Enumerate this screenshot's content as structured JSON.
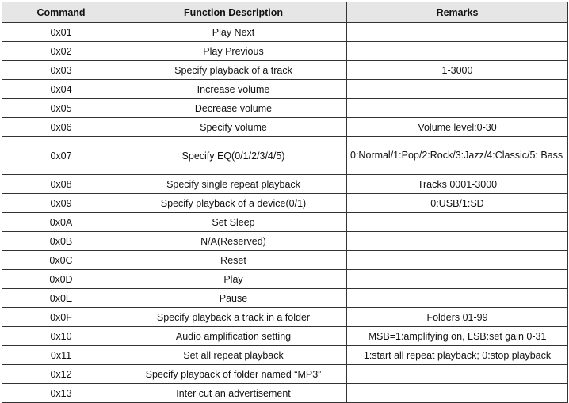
{
  "headers": [
    "Command",
    "Function Description",
    "Remarks"
  ],
  "rows": [
    {
      "command": "0x01",
      "function": "Play Next",
      "remarks": ""
    },
    {
      "command": "0x02",
      "function": "Play Previous",
      "remarks": ""
    },
    {
      "command": "0x03",
      "function": "Specify playback of a track",
      "remarks": "1-3000"
    },
    {
      "command": "0x04",
      "function": "Increase volume",
      "remarks": ""
    },
    {
      "command": "0x05",
      "function": "Decrease volume",
      "remarks": ""
    },
    {
      "command": "0x06",
      "function": "Specify volume",
      "remarks": "Volume level:0-30"
    },
    {
      "command": "0x07",
      "function": "Specify EQ(0/1/2/3/4/5)",
      "remarks": "0:Normal/1:Pop/2:Rock/3:Jazz/4:Classic/5: Bass"
    },
    {
      "command": "0x08",
      "function": "Specify single repeat playback",
      "remarks": "Tracks 0001-3000"
    },
    {
      "command": "0x09",
      "function": "Specify playback of a device(0/1)",
      "remarks": "0:USB/1:SD"
    },
    {
      "command": "0x0A",
      "function": "Set Sleep",
      "remarks": ""
    },
    {
      "command": "0x0B",
      "function": "N/A(Reserved)",
      "remarks": ""
    },
    {
      "command": "0x0C",
      "function": "Reset",
      "remarks": ""
    },
    {
      "command": "0x0D",
      "function": "Play",
      "remarks": ""
    },
    {
      "command": "0x0E",
      "function": "Pause",
      "remarks": ""
    },
    {
      "command": "0x0F",
      "function": "Specify playback a track in a folder",
      "remarks": "Folders 01-99"
    },
    {
      "command": "0x10",
      "function": "Audio amplification setting",
      "remarks": "MSB=1:amplifying on, LSB:set gain 0-31"
    },
    {
      "command": "0x11",
      "function": "Set all repeat playback",
      "remarks": "1:start all repeat playback; 0:stop playback"
    },
    {
      "command": "0x12",
      "function": "Specify playback of folder named “MP3”",
      "remarks": ""
    },
    {
      "command": "0x13",
      "function": "Inter cut an advertisement",
      "remarks": ""
    }
  ]
}
